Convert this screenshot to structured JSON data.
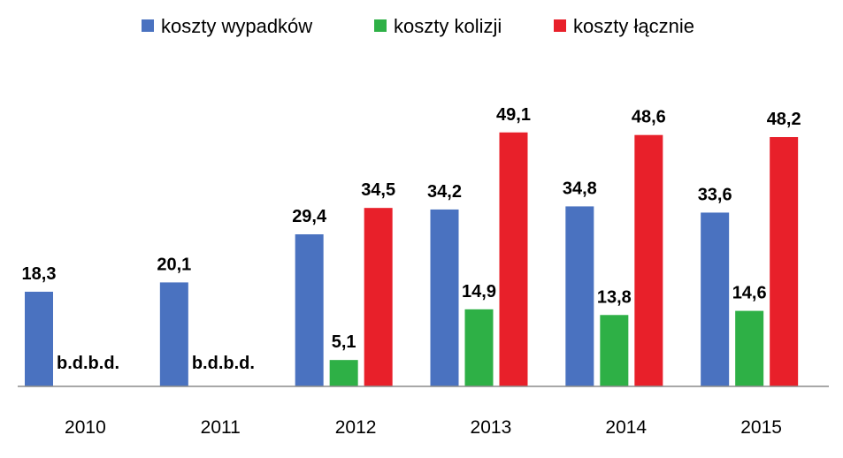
{
  "chart_data": {
    "type": "bar",
    "title": "",
    "xlabel": "",
    "ylabel": "",
    "ylim": [
      0,
      55
    ],
    "grid": false,
    "legend_position": "top",
    "categories": [
      "2010",
      "2011",
      "2012",
      "2013",
      "2014",
      "2015"
    ],
    "missing_label": "b.d.",
    "series": [
      {
        "name": "koszty wypadków",
        "color": "#4a72c0",
        "values": [
          18.3,
          20.1,
          29.4,
          34.2,
          34.8,
          33.6
        ],
        "labels": [
          "18,3",
          "20,1",
          "29,4",
          "34,2",
          "34,8",
          "33,6"
        ]
      },
      {
        "name": "koszty kolizji",
        "color": "#2eb046",
        "values": [
          null,
          null,
          5.1,
          14.9,
          13.8,
          14.6
        ],
        "labels": [
          "b.d.",
          "b.d.",
          "5,1",
          "14,9",
          "13,8",
          "14,6"
        ]
      },
      {
        "name": "koszty łącznie",
        "color": "#e8202a",
        "values": [
          null,
          null,
          34.5,
          49.1,
          48.6,
          48.2
        ],
        "labels": [
          "b.d.",
          "b.d.",
          "34,5",
          "49,1",
          "48,6",
          "48,2"
        ]
      }
    ]
  }
}
